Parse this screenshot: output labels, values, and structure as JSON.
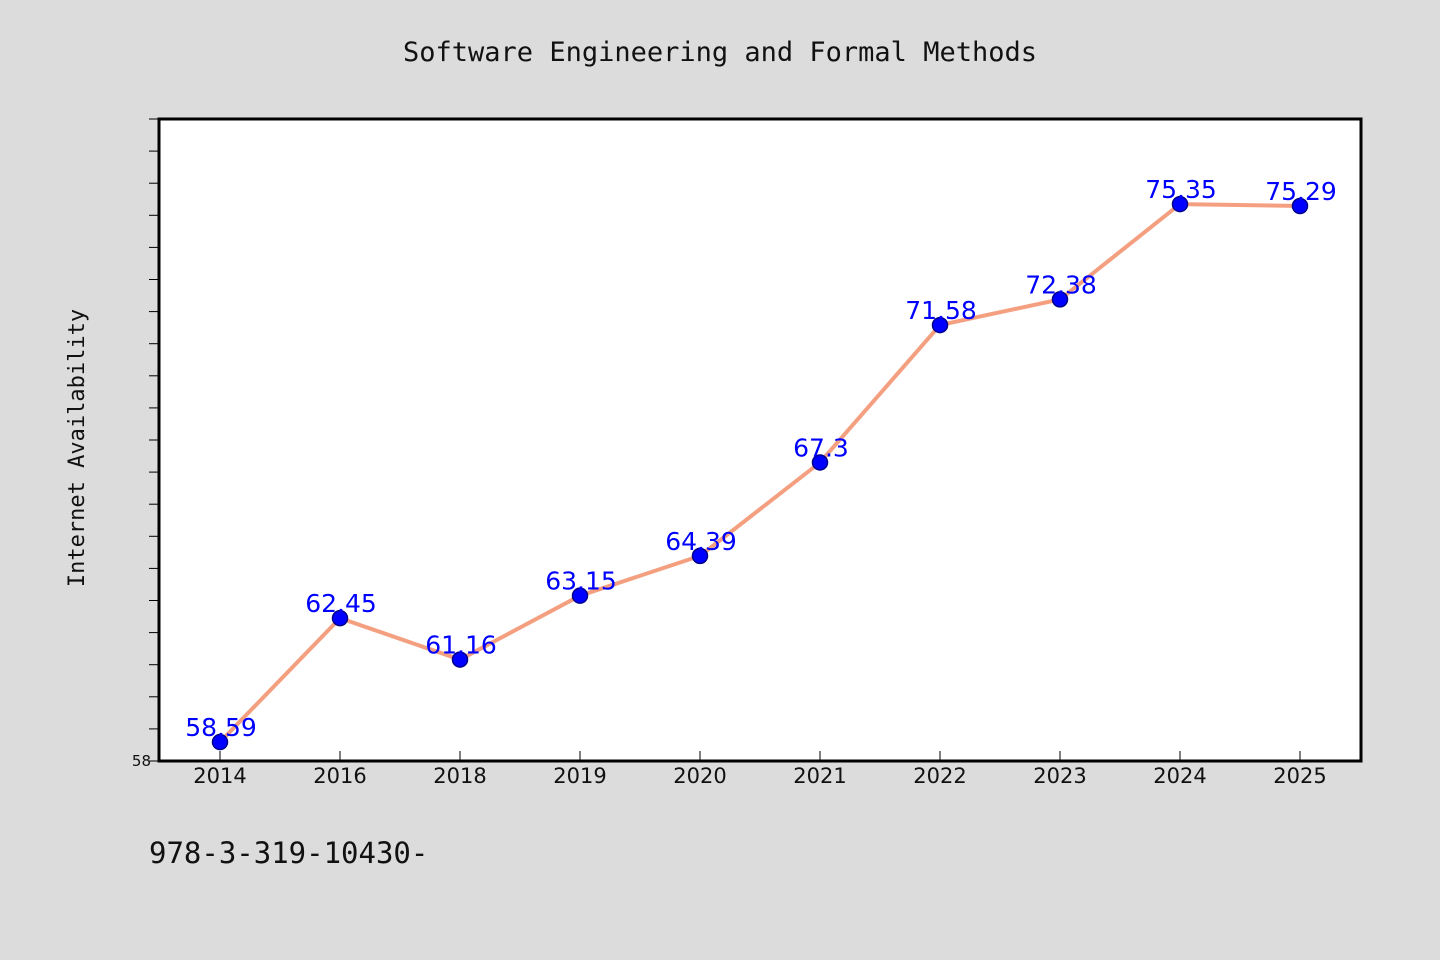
{
  "colors": {
    "background": "#dcdcdc",
    "plot_background": "#ffffff",
    "line": "#f4a080",
    "marker_fill": "#0000ff",
    "marker_edge": "#00008b",
    "data_label": "#0000ff",
    "frame": "#000000"
  },
  "footnote": "978-3-319-10430-",
  "chart_data": {
    "type": "line",
    "title": "Software Engineering and Formal Methods",
    "xlabel": "",
    "ylabel": "Internet Availability",
    "categories": [
      "2014",
      "2016",
      "2018",
      "2019",
      "2020",
      "2021",
      "2022",
      "2023",
      "2024",
      "2025"
    ],
    "series": [
      {
        "values": [
          58.59,
          62.45,
          61.16,
          63.15,
          64.39,
          67.3,
          71.58,
          72.38,
          75.35,
          75.29
        ]
      }
    ],
    "data_labels": [
      "58.59",
      "62.45",
      "61.16",
      "63.15",
      "64.39",
      "67.3",
      "71.58",
      "72.38",
      "75.35",
      "75.29"
    ],
    "ylim": [
      58,
      78
    ],
    "ytick_labels": [
      "58"
    ],
    "y_minor_step": 1,
    "grid": false,
    "legend": "none"
  }
}
